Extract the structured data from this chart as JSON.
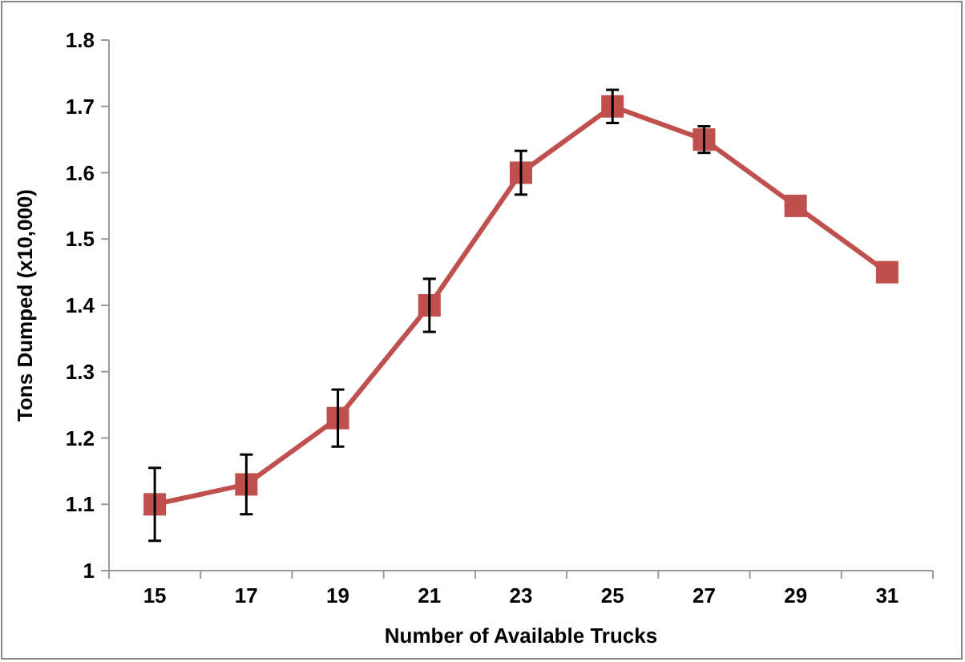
{
  "chart_data": {
    "type": "line",
    "xlabel": "Number of Available Trucks",
    "ylabel": "Tons Dumped (x10,000)",
    "categories": [
      "15",
      "17",
      "19",
      "21",
      "23",
      "25",
      "27",
      "29",
      "31"
    ],
    "series": [
      {
        "color": "#c0504d",
        "values": [
          1.1,
          1.13,
          1.23,
          1.4,
          1.6,
          1.7,
          1.65,
          1.55,
          1.45
        ],
        "errors": [
          0.055,
          0.045,
          0.043,
          0.04,
          0.033,
          0.025,
          0.02,
          null,
          null
        ]
      }
    ],
    "ylim": [
      1,
      1.8
    ],
    "yticks": [
      1,
      1.1,
      1.2,
      1.3,
      1.4,
      1.5,
      1.6,
      1.7,
      1.8
    ],
    "grid": false,
    "marker": "square",
    "line_style": "solid"
  }
}
